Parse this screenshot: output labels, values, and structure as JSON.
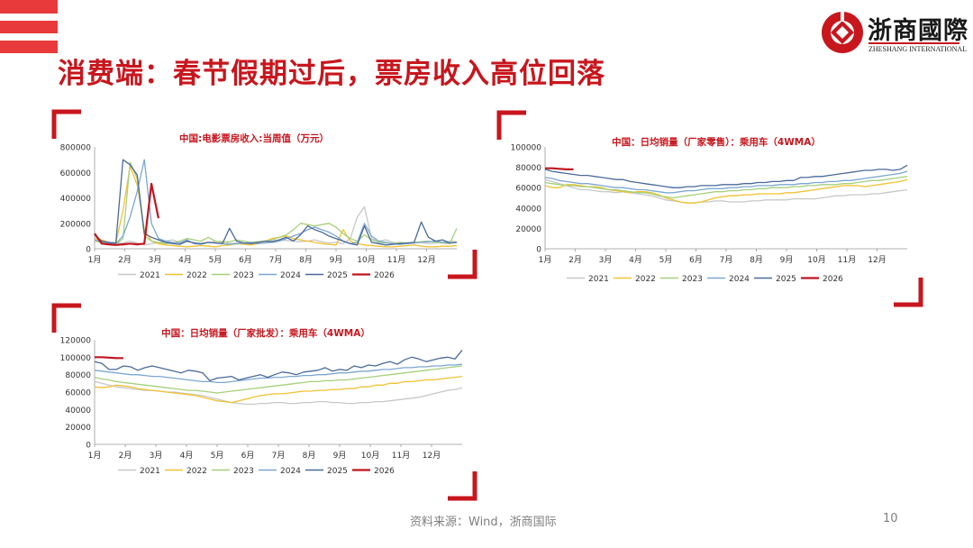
{
  "page": {
    "title": "消费端：春节假期过后，票房收入高位回落",
    "source": "资料来源：Wind，浙商国际",
    "page_number": "10"
  },
  "logo": {
    "name": "浙商國際",
    "subtitle": "ZHESHANG INTERNATIONAL",
    "colors": {
      "accent": "#c8161d"
    }
  },
  "colors": {
    "2021": "#c8c8c8",
    "2022": "#f2c232",
    "2023": "#a6d07a",
    "2024": "#7ba7d1",
    "2025": "#4a6a9b",
    "2026": "#c0161f",
    "title_red": "#c8161d"
  },
  "chart_data": [
    {
      "type": "line",
      "title": "中国:电影票房收入:当周值（万元）",
      "months": [
        "1月",
        "2月",
        "3月",
        "4月",
        "5月",
        "6月",
        "7月",
        "8月",
        "9月",
        "10月",
        "11月",
        "12月"
      ],
      "yticks": [
        "0",
        "200000",
        "400000",
        "600000",
        "800000"
      ],
      "ylim": [
        0,
        800000
      ],
      "legend": [
        "2021",
        "2022",
        "2023",
        "2024",
        "2025",
        "2026"
      ],
      "series": [
        {
          "name": "2021",
          "values": [
            100000,
            60000,
            50000,
            40000,
            45000,
            60000,
            45000,
            30000,
            40000,
            45000,
            60000,
            70000,
            50000,
            55000,
            50000,
            40000,
            50000,
            55000,
            60000,
            40000,
            45000,
            40000,
            50000,
            45000,
            50000,
            60000,
            70000,
            65000,
            60000,
            55000,
            60000,
            70000,
            55000,
            45000,
            50000,
            40000,
            80000,
            250000,
            330000,
            80000,
            60000,
            70000,
            50000,
            45000,
            40000,
            45000,
            50000,
            40000,
            45000,
            50000,
            60000,
            55000
          ]
        },
        {
          "name": "2022",
          "values": [
            80000,
            70000,
            50000,
            45000,
            300000,
            650000,
            500000,
            150000,
            60000,
            40000,
            30000,
            25000,
            20000,
            15000,
            20000,
            25000,
            20000,
            15000,
            25000,
            30000,
            40000,
            35000,
            30000,
            40000,
            60000,
            80000,
            90000,
            100000,
            80000,
            70000,
            60000,
            50000,
            40000,
            35000,
            30000,
            150000,
            60000,
            40000,
            30000,
            25000,
            20000,
            15000,
            15000,
            20000,
            25000,
            30000,
            20000,
            15000,
            15000,
            20000,
            20000,
            25000
          ]
        },
        {
          "name": "2023",
          "values": [
            60000,
            50000,
            40000,
            30000,
            80000,
            680000,
            550000,
            100000,
            60000,
            50000,
            40000,
            45000,
            60000,
            80000,
            70000,
            60000,
            90000,
            60000,
            50000,
            55000,
            70000,
            60000,
            50000,
            55000,
            60000,
            70000,
            90000,
            110000,
            150000,
            200000,
            190000,
            180000,
            190000,
            200000,
            170000,
            120000,
            80000,
            60000,
            110000,
            70000,
            50000,
            45000,
            40000,
            50000,
            45000,
            50000,
            55000,
            60000,
            50000,
            45000,
            40000,
            160000
          ]
        },
        {
          "name": "2024",
          "values": [
            70000,
            55000,
            45000,
            40000,
            100000,
            250000,
            450000,
            700000,
            200000,
            80000,
            60000,
            50000,
            45000,
            70000,
            40000,
            35000,
            50000,
            45000,
            40000,
            35000,
            40000,
            45000,
            50000,
            40000,
            45000,
            50000,
            60000,
            80000,
            100000,
            120000,
            150000,
            170000,
            150000,
            130000,
            100000,
            60000,
            40000,
            50000,
            200000,
            100000,
            60000,
            50000,
            40000,
            35000,
            40000,
            45000,
            50000,
            55000,
            60000,
            50000,
            45000,
            50000
          ]
        },
        {
          "name": "2025",
          "values": [
            110000,
            60000,
            50000,
            45000,
            700000,
            660000,
            580000,
            120000,
            90000,
            70000,
            50000,
            40000,
            35000,
            60000,
            45000,
            40000,
            50000,
            45000,
            40000,
            160000,
            60000,
            45000,
            40000,
            50000,
            60000,
            55000,
            70000,
            90000,
            60000,
            110000,
            180000,
            150000,
            130000,
            100000,
            80000,
            60000,
            40000,
            30000,
            180000,
            50000,
            40000,
            30000,
            35000,
            40000,
            45000,
            50000,
            210000,
            90000,
            60000,
            70000,
            45000,
            50000
          ]
        },
        {
          "name": "2026",
          "values": [
            120000,
            40000,
            35000,
            30000,
            35000,
            40000,
            35000,
            40000,
            510000,
            240000
          ]
        }
      ]
    },
    {
      "type": "line",
      "title": "中国：日均销量（厂家零售）：乘用车（4WMA）",
      "months": [
        "1月",
        "2月",
        "3月",
        "4月",
        "5月",
        "6月",
        "7月",
        "8月",
        "9月",
        "10月",
        "11月",
        "12月"
      ],
      "yticks": [
        "0",
        "20000",
        "40000",
        "60000",
        "80000",
        "100000"
      ],
      "ylim": [
        0,
        100000
      ],
      "legend": [
        "2021",
        "2022",
        "2023",
        "2024",
        "2025",
        "2026"
      ],
      "series": [
        {
          "name": "2021",
          "values": [
            68000,
            66000,
            64000,
            62000,
            60000,
            58000,
            58000,
            57000,
            56000,
            56000,
            55000,
            56000,
            55000,
            54000,
            53000,
            52000,
            50000,
            48000,
            47000,
            46000,
            45000,
            45000,
            46000,
            46000,
            47000,
            47000,
            46000,
            46000,
            46000,
            47000,
            47000,
            48000,
            48000,
            48000,
            48000,
            49000,
            49000,
            49000,
            49000,
            50000,
            51000,
            52000,
            52000,
            53000,
            53000,
            53000,
            54000,
            54000,
            55000,
            56000,
            57000,
            58000
          ]
        },
        {
          "name": "2022",
          "values": [
            62000,
            60000,
            60000,
            63000,
            63000,
            62000,
            61000,
            61000,
            60000,
            58000,
            57000,
            56000,
            55000,
            56000,
            56000,
            55000,
            53000,
            50000,
            48000,
            46000,
            45000,
            45000,
            46000,
            48000,
            50000,
            51000,
            52000,
            52000,
            53000,
            53000,
            54000,
            54000,
            54000,
            54000,
            55000,
            55000,
            56000,
            57000,
            58000,
            59000,
            60000,
            61000,
            62000,
            62000,
            62000,
            61000,
            62000,
            63000,
            64000,
            65000,
            66000,
            68000
          ]
        },
        {
          "name": "2023",
          "values": [
            65000,
            64000,
            63000,
            62000,
            62000,
            61000,
            61000,
            60000,
            59000,
            58000,
            58000,
            57000,
            56000,
            55000,
            55000,
            54000,
            52000,
            51000,
            50000,
            51000,
            52000,
            53000,
            54000,
            55000,
            56000,
            56000,
            57000,
            57000,
            58000,
            58000,
            59000,
            59000,
            60000,
            60000,
            60000,
            61000,
            61000,
            62000,
            62000,
            63000,
            63000,
            63000,
            64000,
            64000,
            65000,
            66000,
            67000,
            67000,
            68000,
            69000,
            70000,
            71000
          ]
        },
        {
          "name": "2024",
          "values": [
            70000,
            69000,
            67000,
            66000,
            65000,
            64000,
            64000,
            63000,
            62000,
            61000,
            60000,
            60000,
            59000,
            58000,
            58000,
            57000,
            56000,
            55000,
            55000,
            56000,
            57000,
            57000,
            58000,
            59000,
            59000,
            59000,
            60000,
            60000,
            61000,
            61000,
            62000,
            62000,
            62000,
            63000,
            63000,
            63000,
            64000,
            64000,
            65000,
            65000,
            66000,
            66000,
            67000,
            67000,
            68000,
            69000,
            70000,
            71000,
            72000,
            73000,
            74000,
            76000
          ]
        },
        {
          "name": "2025",
          "values": [
            78000,
            76000,
            75000,
            74000,
            73000,
            72000,
            72000,
            71000,
            70000,
            69000,
            68000,
            68000,
            66000,
            65000,
            64000,
            63000,
            62000,
            61000,
            60000,
            60000,
            61000,
            61000,
            62000,
            62000,
            62000,
            63000,
            63000,
            63000,
            64000,
            64000,
            65000,
            65000,
            66000,
            66000,
            67000,
            67000,
            70000,
            70000,
            71000,
            71000,
            72000,
            73000,
            74000,
            75000,
            76000,
            77000,
            77000,
            78000,
            78000,
            77000,
            78000,
            82000
          ]
        },
        {
          "name": "2026",
          "values": [
            79000,
            79000,
            78500,
            78000,
            78000
          ]
        }
      ]
    },
    {
      "type": "line",
      "title": "中国：日均销量（厂家批发）：乘用车（4WMA）",
      "months": [
        "1月",
        "2月",
        "3月",
        "4月",
        "5月",
        "6月",
        "7月",
        "8月",
        "9月",
        "10月",
        "11月",
        "12月"
      ],
      "yticks": [
        "0",
        "20000",
        "40000",
        "60000",
        "80000",
        "100000",
        "120000"
      ],
      "ylim": [
        0,
        120000
      ],
      "legend": [
        "2021",
        "2022",
        "2023",
        "2024",
        "2025",
        "2026"
      ],
      "series": [
        {
          "name": "2021",
          "values": [
            72000,
            70000,
            68000,
            66000,
            65000,
            64000,
            63000,
            62000,
            62000,
            61000,
            60000,
            60000,
            59000,
            58000,
            57000,
            56000,
            54000,
            52000,
            50000,
            48000,
            47000,
            46000,
            46000,
            47000,
            47000,
            48000,
            48000,
            47000,
            47000,
            48000,
            48000,
            49000,
            49000,
            48000,
            48000,
            47000,
            47000,
            48000,
            48000,
            49000,
            49000,
            50000,
            51000,
            52000,
            53000,
            54000,
            56000,
            58000,
            60000,
            62000,
            63000,
            65000
          ]
        },
        {
          "name": "2022",
          "values": [
            66000,
            65000,
            66000,
            68000,
            67000,
            66000,
            64000,
            63000,
            62000,
            61000,
            60000,
            59000,
            58000,
            57000,
            56000,
            54000,
            52000,
            50000,
            49000,
            48000,
            50000,
            52000,
            54000,
            56000,
            57000,
            58000,
            58000,
            59000,
            60000,
            61000,
            61000,
            62000,
            62000,
            63000,
            63000,
            64000,
            64000,
            66000,
            66000,
            68000,
            68000,
            70000,
            70000,
            72000,
            72000,
            73000,
            74000,
            74000,
            75000,
            76000,
            77000,
            78000
          ]
        },
        {
          "name": "2023",
          "values": [
            77000,
            75000,
            74000,
            72000,
            71000,
            70000,
            69000,
            68000,
            67000,
            66000,
            65000,
            64000,
            63000,
            62000,
            62000,
            61000,
            60000,
            59000,
            60000,
            61000,
            62000,
            63000,
            64000,
            65000,
            66000,
            67000,
            68000,
            69000,
            70000,
            71000,
            72000,
            72000,
            73000,
            73000,
            74000,
            74000,
            75000,
            76000,
            77000,
            78000,
            79000,
            80000,
            81000,
            82000,
            83000,
            84000,
            85000,
            86000,
            87000,
            88000,
            89000,
            90000
          ]
        },
        {
          "name": "2024",
          "values": [
            85000,
            84000,
            83000,
            82000,
            81000,
            80000,
            80000,
            79000,
            78000,
            78000,
            77000,
            76000,
            75000,
            74000,
            73000,
            72000,
            72000,
            71000,
            71000,
            72000,
            73000,
            74000,
            75000,
            76000,
            76000,
            77000,
            77000,
            78000,
            78000,
            79000,
            79000,
            80000,
            80000,
            81000,
            82000,
            82000,
            83000,
            84000,
            84000,
            85000,
            86000,
            86000,
            87000,
            88000,
            88000,
            89000,
            89000,
            90000,
            90000,
            91000,
            91000,
            92000
          ]
        },
        {
          "name": "2025",
          "values": [
            95000,
            93000,
            86000,
            86000,
            90000,
            89000,
            85000,
            88000,
            90000,
            88000,
            86000,
            84000,
            82000,
            85000,
            84000,
            82000,
            73000,
            76000,
            77000,
            78000,
            74000,
            76000,
            78000,
            80000,
            77000,
            80000,
            83000,
            82000,
            80000,
            83000,
            84000,
            85000,
            88000,
            84000,
            86000,
            85000,
            90000,
            88000,
            91000,
            90000,
            93000,
            95000,
            92000,
            97000,
            100000,
            98000,
            95000,
            97000,
            99000,
            100000,
            98000,
            108000
          ]
        },
        {
          "name": "2026",
          "values": [
            100000,
            100000,
            99500,
            99000,
            99000
          ]
        }
      ]
    }
  ]
}
